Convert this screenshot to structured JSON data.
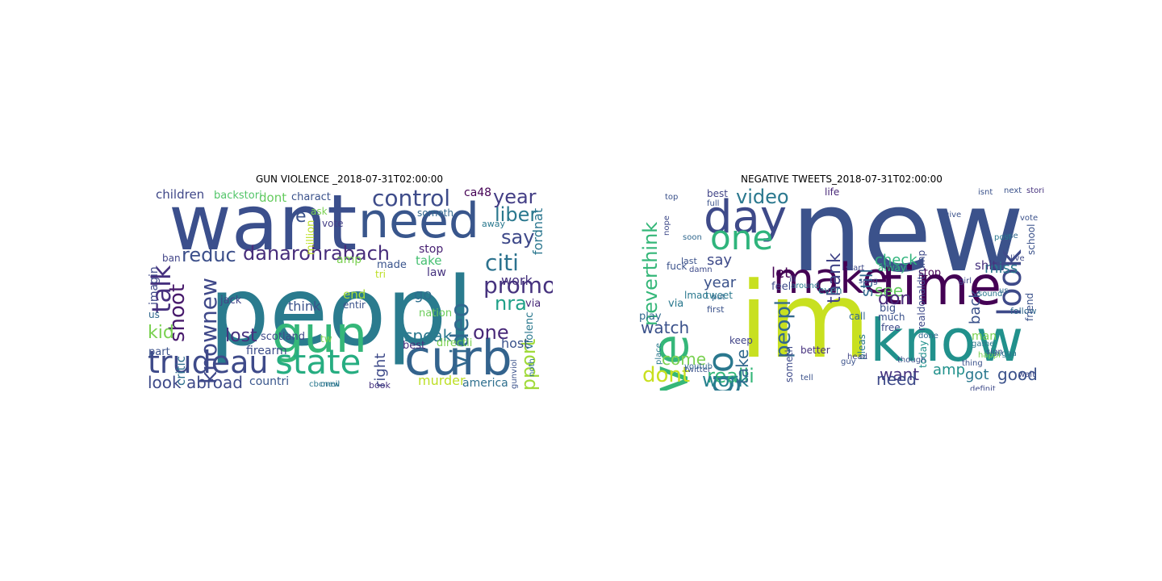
{
  "figure": {
    "panels": [
      {
        "title": "GUN VIOLENCE _2018-07-31T02:00:00",
        "words": [
          {
            "text": "peopl",
            "color": "#2a7b8e"
          },
          {
            "text": "want",
            "color": "#3b4f8c"
          },
          {
            "text": "need",
            "color": "#39568c"
          },
          {
            "text": "curb",
            "color": "#33638d"
          },
          {
            "text": "gun",
            "color": "#35b779"
          },
          {
            "text": "state",
            "color": "#26ad81"
          },
          {
            "text": "trudeau",
            "color": "#3e4a89"
          },
          {
            "text": "danarohrabach",
            "color": "#472d7b"
          },
          {
            "text": "control",
            "color": "#3e4c8a"
          },
          {
            "text": "citi",
            "color": "#2c728e"
          },
          {
            "text": "promot",
            "color": "#46327e"
          },
          {
            "text": "liber",
            "color": "#2a788e"
          },
          {
            "text": "say",
            "color": "#3e4989"
          },
          {
            "text": "year",
            "color": "#433e85"
          },
          {
            "text": "talk",
            "color": "#46307e"
          },
          {
            "text": "reduc",
            "color": "#3c4f8a"
          },
          {
            "text": "knownew",
            "color": "#3f4889"
          },
          {
            "text": "shoot",
            "color": "#481a6c"
          },
          {
            "text": "video",
            "color": "#31688e"
          },
          {
            "text": "nra",
            "color": "#1fa088"
          },
          {
            "text": "support",
            "color": "#a0da39"
          },
          {
            "text": "look abroad",
            "color": "#3e4a89"
          },
          {
            "text": "lost",
            "color": "#46307e"
          },
          {
            "text": "kid",
            "color": "#7ad151"
          },
          {
            "text": "one",
            "color": "#482878"
          },
          {
            "text": "speak",
            "color": "#2a788e"
          },
          {
            "text": "host",
            "color": "#3b528b"
          },
          {
            "text": "murder",
            "color": "#bddf26"
          },
          {
            "text": "america",
            "color": "#2e6f8e"
          },
          {
            "text": "countri",
            "color": "#39568c"
          },
          {
            "text": "firearm",
            "color": "#3d4d8a"
          },
          {
            "text": "children",
            "color": "#3f4788"
          },
          {
            "text": "dont",
            "color": "#65cb5e"
          },
          {
            "text": "take",
            "color": "#44bf70"
          },
          {
            "text": "stop",
            "color": "#482173"
          },
          {
            "text": "right",
            "color": "#3e4a89"
          },
          {
            "text": "best",
            "color": "#472f7d"
          },
          {
            "text": "directli",
            "color": "#7ad151"
          },
          {
            "text": "made",
            "color": "#3a548c"
          },
          {
            "text": "law",
            "color": "#46337f"
          },
          {
            "text": "go",
            "color": "#2e6e8e"
          },
          {
            "text": "imagin",
            "color": "#3f4889"
          },
          {
            "text": "fordnat",
            "color": "#2a768e"
          },
          {
            "text": "ca48",
            "color": "#440154"
          },
          {
            "text": "million",
            "color": "#bddf26"
          },
          {
            "text": "think",
            "color": "#3b528b"
          },
          {
            "text": "end",
            "color": "#a5db36"
          },
          {
            "text": "amp",
            "color": "#7ad151"
          },
          {
            "text": "critic",
            "color": "#2e6f8e"
          },
          {
            "text": "backstori",
            "color": "#52c569"
          },
          {
            "text": "charact",
            "color": "#3b528b"
          },
          {
            "text": "violenc",
            "color": "#2a788e"
          },
          {
            "text": "work",
            "color": "#46327e"
          },
          {
            "text": "via",
            "color": "#482878"
          },
          {
            "text": "ban",
            "color": "#414487"
          },
          {
            "text": "us",
            "color": "#31688e"
          },
          {
            "text": "part",
            "color": "#3b528b"
          },
          {
            "text": "jack",
            "color": "#414487"
          },
          {
            "text": "scotland",
            "color": "#3e4a89"
          },
          {
            "text": "nation",
            "color": "#6ccd5a"
          },
          {
            "text": "vote",
            "color": "#433e85"
          },
          {
            "text": "tri",
            "color": "#bddf26"
          },
          {
            "text": "entir",
            "color": "#3b528b"
          },
          {
            "text": "someth",
            "color": "#31688e"
          },
          {
            "text": "away",
            "color": "#2a788e"
          },
          {
            "text": "oneil",
            "color": "#2c728e"
          },
          {
            "text": "book",
            "color": "#46337f"
          },
          {
            "text": "cbcnew",
            "color": "#2a788e"
          },
          {
            "text": "gunviol",
            "color": "#3b528b"
          },
          {
            "text": "noth",
            "color": "#2e6e8e"
          },
          {
            "text": "ask",
            "color": "#7ad151"
          },
          {
            "text": "ye",
            "color": "#3b528b"
          },
          {
            "text": "tw",
            "color": "#7ad151"
          }
        ]
      },
      {
        "title": "NEGATIVE TWEETS_2018-07-31T02:00:00",
        "words": [
          {
            "text": "new",
            "color": "#3b528b"
          },
          {
            "text": "im",
            "color": "#c8e020"
          },
          {
            "text": "know",
            "color": "#21918c"
          },
          {
            "text": "love",
            "color": "#35b779"
          },
          {
            "text": "time",
            "color": "#440154"
          },
          {
            "text": "day",
            "color": "#3e4a89"
          },
          {
            "text": "make",
            "color": "#440154"
          },
          {
            "text": "one",
            "color": "#2fb47c"
          },
          {
            "text": "go",
            "color": "#2a788e"
          },
          {
            "text": "dont",
            "color": "#c8e020"
          },
          {
            "text": "look",
            "color": "#3e4a89"
          },
          {
            "text": "realli",
            "color": "#35b779"
          },
          {
            "text": "work",
            "color": "#26828e"
          },
          {
            "text": "peopl",
            "color": "#31688e"
          },
          {
            "text": "video",
            "color": "#2a788e"
          },
          {
            "text": "neverthink",
            "color": "#35b779"
          },
          {
            "text": "watch",
            "color": "#3b528b"
          },
          {
            "text": "want",
            "color": "#46327e"
          },
          {
            "text": "need",
            "color": "#3e4a89"
          },
          {
            "text": "good",
            "color": "#3b528b"
          },
          {
            "text": "check",
            "color": "#2fb47c"
          },
          {
            "text": "back",
            "color": "#3b528b"
          },
          {
            "text": "miss",
            "color": "#2a788e"
          },
          {
            "text": "thank",
            "color": "#414487"
          },
          {
            "text": "say",
            "color": "#3e4a89"
          },
          {
            "text": "year",
            "color": "#3b528b"
          },
          {
            "text": "let",
            "color": "#440154"
          },
          {
            "text": "see",
            "color": "#65cb5e"
          },
          {
            "text": "don",
            "color": "#482878"
          },
          {
            "text": "take",
            "color": "#31688e"
          },
          {
            "text": "come",
            "color": "#7ad151"
          },
          {
            "text": "amp",
            "color": "#21918c"
          },
          {
            "text": "got",
            "color": "#2a788e"
          },
          {
            "text": "still",
            "color": "#31688e"
          },
          {
            "text": "feel",
            "color": "#3e4a89"
          },
          {
            "text": "shit",
            "color": "#46327e"
          },
          {
            "text": "stop",
            "color": "#440154"
          },
          {
            "text": "life",
            "color": "#482878"
          },
          {
            "text": "fuck",
            "color": "#3b528b"
          },
          {
            "text": "lmao",
            "color": "#2a788e"
          },
          {
            "text": "via",
            "color": "#2a788e"
          },
          {
            "text": "play",
            "color": "#31688e"
          },
          {
            "text": "tweet",
            "color": "#2a788e"
          },
          {
            "text": "first",
            "color": "#3b528b"
          },
          {
            "text": "alway",
            "color": "#2fb47c"
          },
          {
            "text": "much",
            "color": "#3b528b"
          },
          {
            "text": "realdonaldtrump",
            "color": "#3e4a89"
          },
          {
            "text": "follow",
            "color": "#31688e"
          },
          {
            "text": "today",
            "color": "#21918c"
          },
          {
            "text": "man",
            "color": "#7ad151"
          },
          {
            "text": "friend",
            "color": "#3b528b"
          },
          {
            "text": "best",
            "color": "#414487"
          },
          {
            "text": "last",
            "color": "#3b528b"
          },
          {
            "text": "someth",
            "color": "#3e4a89"
          },
          {
            "text": "better",
            "color": "#46327e"
          },
          {
            "text": "pleas",
            "color": "#2a788e"
          },
          {
            "text": "big",
            "color": "#3b528b"
          },
          {
            "text": "free",
            "color": "#3e4a89"
          },
          {
            "text": "call",
            "color": "#31688e"
          },
          {
            "text": "even",
            "color": "#2a788e"
          },
          {
            "text": "keep",
            "color": "#414487"
          },
          {
            "text": "sound",
            "color": "#2a788e"
          },
          {
            "text": "song",
            "color": "#3b528b"
          },
          {
            "text": "girl",
            "color": "#3e4a89"
          },
          {
            "text": "thing",
            "color": "#3b528b"
          },
          {
            "text": "us",
            "color": "#31688e"
          },
          {
            "text": "game",
            "color": "#2a788e"
          },
          {
            "text": "school",
            "color": "#3b528b"
          },
          {
            "text": "live",
            "color": "#3e4a89"
          },
          {
            "text": "stori",
            "color": "#46327e"
          },
          {
            "text": "next",
            "color": "#3b528b"
          },
          {
            "text": "use",
            "color": "#31688e"
          },
          {
            "text": "happi",
            "color": "#7ad151"
          },
          {
            "text": "guy",
            "color": "#3b528b"
          },
          {
            "text": "around",
            "color": "#2a788e"
          },
          {
            "text": "start",
            "color": "#3e4a89"
          },
          {
            "text": "isnt",
            "color": "#3b528b"
          },
          {
            "text": "post",
            "color": "#2a788e"
          },
          {
            "text": "soon",
            "color": "#31688e"
          },
          {
            "text": "damn",
            "color": "#3e4a89"
          },
          {
            "text": "twitter",
            "color": "#3b528b"
          },
          {
            "text": "place",
            "color": "#2a788e"
          },
          {
            "text": "full",
            "color": "#3b528b"
          },
          {
            "text": "put",
            "color": "#31688e"
          },
          {
            "text": "ill",
            "color": "#3e4a89"
          },
          {
            "text": "head",
            "color": "#414487"
          },
          {
            "text": "tell",
            "color": "#3b528b"
          },
          {
            "text": "done",
            "color": "#31688e"
          },
          {
            "text": "sign",
            "color": "#3b528b"
          },
          {
            "text": "wait",
            "color": "#3e4a89"
          },
          {
            "text": "though",
            "color": "#3b528b"
          },
          {
            "text": "nigga",
            "color": "#2a788e"
          },
          {
            "text": "top",
            "color": "#3b528b"
          },
          {
            "text": "nope",
            "color": "#3e4a89"
          },
          {
            "text": "youtub",
            "color": "#31688e"
          },
          {
            "text": "give",
            "color": "#3b528b"
          },
          {
            "text": "definit",
            "color": "#3e4a89"
          },
          {
            "text": "vote",
            "color": "#3b528b"
          },
          {
            "text": "gonna",
            "color": "#414487"
          }
        ]
      }
    ]
  }
}
